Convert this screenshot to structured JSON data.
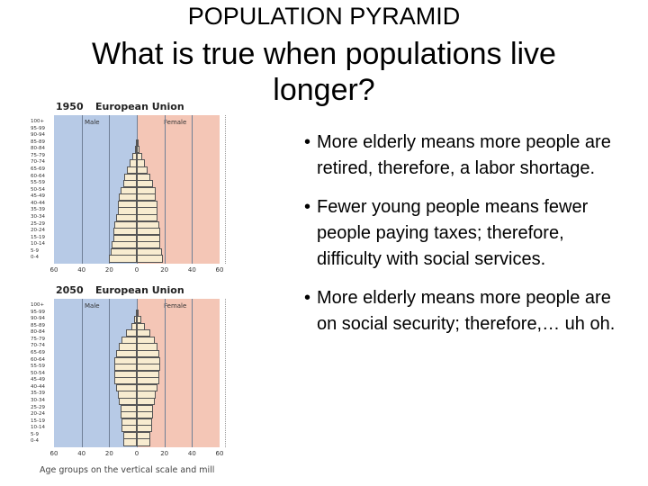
{
  "title": "POPULATION PYRAMID",
  "heading": "What is true when populations live longer?",
  "bullets": [
    "More elderly means more people are retired, therefore, a labor shortage.",
    "Fewer young people means fewer people paying taxes; therefore, difficulty with social services.",
    "More elderly means more people are on social security; therefore,… uh oh."
  ],
  "pyramids": [
    {
      "year": "1950",
      "region": "European Union",
      "male_label": "Male",
      "female_label": "Female",
      "age_groups": [
        "100+",
        "95-99",
        "90-94",
        "85-89",
        "80-84",
        "75-79",
        "70-74",
        "65-69",
        "60-64",
        "55-59",
        "50-54",
        "45-49",
        "40-44",
        "35-39",
        "30-34",
        "25-29",
        "20-24",
        "15-19",
        "10-14",
        "5-9",
        "0-4"
      ],
      "male_values": [
        0,
        0,
        0,
        0.5,
        1.5,
        3,
        5,
        7,
        9,
        10,
        12,
        13,
        14,
        14,
        15,
        16,
        17,
        17,
        18,
        19,
        20
      ],
      "female_values": [
        0,
        0,
        0,
        1,
        2,
        4,
        6,
        8,
        10,
        12,
        14,
        14,
        15,
        15,
        15,
        16,
        17,
        17,
        17,
        18,
        19
      ],
      "x_ticks": [
        "60",
        "40",
        "20",
        "0",
        "20",
        "40",
        "60"
      ]
    },
    {
      "year": "2050",
      "region": "European Union",
      "male_label": "Male",
      "female_label": "Female",
      "age_groups": [
        "100+",
        "95-99",
        "90-94",
        "85-89",
        "80-84",
        "75-79",
        "70-74",
        "65-69",
        "60-64",
        "55-59",
        "50-54",
        "45-49",
        "40-44",
        "35-39",
        "30-34",
        "25-29",
        "20-24",
        "15-19",
        "10-14",
        "5-9",
        "0-4"
      ],
      "male_values": [
        0,
        0.5,
        2,
        4,
        8,
        11,
        13,
        15,
        16,
        16,
        16,
        16,
        15,
        14,
        13,
        12,
        12,
        11,
        11,
        10,
        10
      ],
      "female_values": [
        0,
        1,
        3,
        6,
        10,
        13,
        15,
        16,
        17,
        17,
        16,
        16,
        15,
        14,
        13,
        12,
        12,
        11,
        11,
        10,
        10
      ],
      "x_ticks": [
        "60",
        "40",
        "20",
        "0",
        "20",
        "40",
        "60"
      ]
    }
  ],
  "footnote": "Age groups on the vertical scale and mill"
}
